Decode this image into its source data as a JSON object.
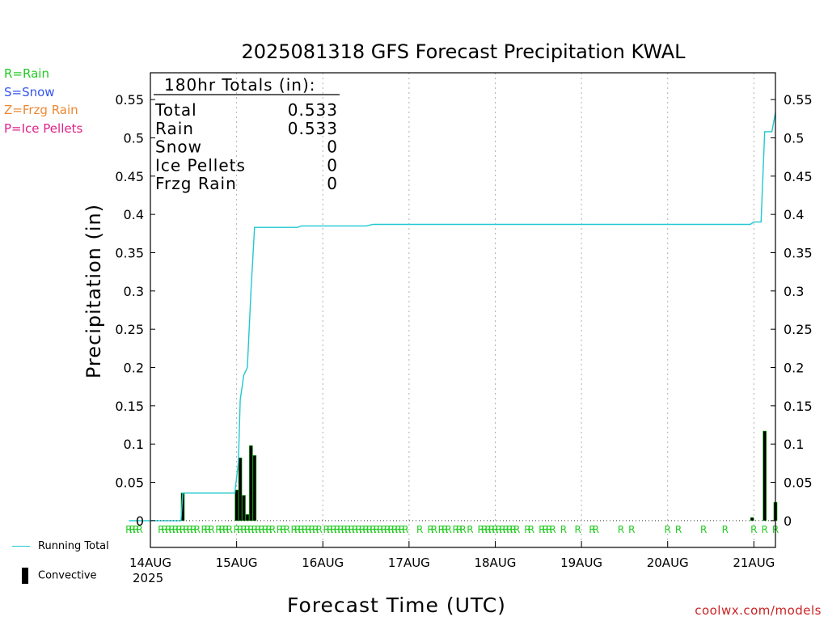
{
  "chart_data": {
    "type": "line",
    "title": "2025081318 GFS Forecast Precipitation KWAL",
    "xlabel": "Forecast Time (UTC)",
    "ylabel": "Precipitation (in)",
    "ylim": [
      -0.035,
      0.585
    ],
    "xlim": [
      "2025-08-14T00:00",
      "2025-08-21T06:00"
    ],
    "y_ticks": [
      "0",
      "0.05",
      "0.1",
      "0.15",
      "0.2",
      "0.25",
      "0.3",
      "0.35",
      "0.4",
      "0.45",
      "0.5",
      "0.55"
    ],
    "x_ticks": [
      {
        "label": "14AUG",
        "t": "2025-08-14T00:00"
      },
      {
        "label": "15AUG",
        "t": "2025-08-15T00:00"
      },
      {
        "label": "16AUG",
        "t": "2025-08-16T00:00"
      },
      {
        "label": "17AUG",
        "t": "2025-08-17T00:00"
      },
      {
        "label": "18AUG",
        "t": "2025-08-18T00:00"
      },
      {
        "label": "19AUG",
        "t": "2025-08-19T00:00"
      },
      {
        "label": "20AUG",
        "t": "2025-08-20T00:00"
      },
      {
        "label": "21AUG",
        "t": "2025-08-21T00:00"
      }
    ],
    "x_year_label": "2025",
    "grid": "vertical dotted",
    "totals_box": {
      "header": "180hr Totals (in):",
      "rows": [
        {
          "label": "Total",
          "value": "0.533"
        },
        {
          "label": "Rain",
          "value": "0.533"
        },
        {
          "label": "Snow",
          "value": "0"
        },
        {
          "label": "Ice Pellets",
          "value": "0"
        },
        {
          "label": "Frzg Rain",
          "value": "0"
        }
      ]
    },
    "precip_type_legend": [
      {
        "text": "R=Rain",
        "color": "#22cc22"
      },
      {
        "text": "S=Snow",
        "color": "#3355ee"
      },
      {
        "text": "Z=Frzg Rain",
        "color": "#ee8833"
      },
      {
        "text": "P=Ice Pellets",
        "color": "#dd2288"
      }
    ],
    "series": [
      {
        "name": "Running Total",
        "color": "#20c8d0",
        "points": [
          [
            "2025-08-13T18:00",
            0
          ],
          [
            "2025-08-14T08:30",
            0
          ],
          [
            "2025-08-14T09:00",
            0.036
          ],
          [
            "2025-08-14T23:00",
            0.036
          ],
          [
            "2025-08-14T23:30",
            0.036
          ],
          [
            "2025-08-15T00:30",
            0.076
          ],
          [
            "2025-08-15T01:00",
            0.158
          ],
          [
            "2025-08-15T02:00",
            0.19
          ],
          [
            "2025-08-15T03:00",
            0.2
          ],
          [
            "2025-08-15T04:00",
            0.3
          ],
          [
            "2025-08-15T05:00",
            0.383
          ],
          [
            "2025-08-15T17:00",
            0.383
          ],
          [
            "2025-08-15T18:00",
            0.385
          ],
          [
            "2025-08-16T12:00",
            0.385
          ],
          [
            "2025-08-16T14:00",
            0.387
          ],
          [
            "2025-08-20T23:00",
            0.387
          ],
          [
            "2025-08-21T00:00",
            0.39
          ],
          [
            "2025-08-21T02:00",
            0.39
          ],
          [
            "2025-08-21T03:00",
            0.508
          ],
          [
            "2025-08-21T05:00",
            0.508
          ],
          [
            "2025-08-21T06:00",
            0.533
          ]
        ]
      },
      {
        "name": "Convective",
        "color": "#000000",
        "bars": [
          [
            "2025-08-14T09:00",
            0.036
          ],
          [
            "2025-08-15T00:00",
            0.04
          ],
          [
            "2025-08-15T01:00",
            0.082
          ],
          [
            "2025-08-15T02:00",
            0.033
          ],
          [
            "2025-08-15T03:00",
            0.008
          ],
          [
            "2025-08-15T04:00",
            0.098
          ],
          [
            "2025-08-15T05:00",
            0.085
          ],
          [
            "2025-08-20T23:30",
            0.004
          ],
          [
            "2025-08-21T03:00",
            0.117
          ],
          [
            "2025-08-21T06:00",
            0.024
          ]
        ]
      }
    ],
    "rain_markers": [
      "2025-08-13T18:00",
      "2025-08-13T19:00",
      "2025-08-13T20:00",
      "2025-08-13T21:00",
      "2025-08-14T03:00",
      "2025-08-14T04:00",
      "2025-08-14T05:00",
      "2025-08-14T06:00",
      "2025-08-14T07:00",
      "2025-08-14T08:00",
      "2025-08-14T09:00",
      "2025-08-14T10:00",
      "2025-08-14T11:00",
      "2025-08-14T12:00",
      "2025-08-14T13:00",
      "2025-08-14T15:00",
      "2025-08-14T16:00",
      "2025-08-14T17:00",
      "2025-08-14T19:00",
      "2025-08-14T20:00",
      "2025-08-14T21:00",
      "2025-08-14T22:00",
      "2025-08-15T00:00",
      "2025-08-15T01:00",
      "2025-08-15T02:00",
      "2025-08-15T03:00",
      "2025-08-15T04:00",
      "2025-08-15T05:00",
      "2025-08-15T06:00",
      "2025-08-15T07:00",
      "2025-08-15T08:00",
      "2025-08-15T09:00",
      "2025-08-15T10:00",
      "2025-08-15T12:00",
      "2025-08-15T13:00",
      "2025-08-15T14:00",
      "2025-08-15T16:00",
      "2025-08-15T17:00",
      "2025-08-15T18:00",
      "2025-08-15T19:00",
      "2025-08-15T20:00",
      "2025-08-15T21:00",
      "2025-08-15T22:00",
      "2025-08-15T23:00",
      "2025-08-16T01:00",
      "2025-08-16T02:00",
      "2025-08-16T03:00",
      "2025-08-16T04:00",
      "2025-08-16T05:00",
      "2025-08-16T06:00",
      "2025-08-16T07:00",
      "2025-08-16T08:00",
      "2025-08-16T09:00",
      "2025-08-16T10:00",
      "2025-08-16T11:00",
      "2025-08-16T12:00",
      "2025-08-16T13:00",
      "2025-08-16T14:00",
      "2025-08-16T15:00",
      "2025-08-16T16:00",
      "2025-08-16T17:00",
      "2025-08-16T18:00",
      "2025-08-16T19:00",
      "2025-08-16T20:00",
      "2025-08-16T21:00",
      "2025-08-16T22:00",
      "2025-08-16T23:00",
      "2025-08-17T03:00",
      "2025-08-17T06:00",
      "2025-08-17T07:00",
      "2025-08-17T09:00",
      "2025-08-17T10:00",
      "2025-08-17T11:00",
      "2025-08-17T13:00",
      "2025-08-17T14:00",
      "2025-08-17T15:00",
      "2025-08-17T17:00",
      "2025-08-17T20:00",
      "2025-08-17T21:00",
      "2025-08-17T22:00",
      "2025-08-17T23:00",
      "2025-08-18T00:00",
      "2025-08-18T01:00",
      "2025-08-18T02:00",
      "2025-08-18T03:00",
      "2025-08-18T04:00",
      "2025-08-18T05:00",
      "2025-08-18T06:00",
      "2025-08-18T09:00",
      "2025-08-18T10:00",
      "2025-08-18T13:00",
      "2025-08-18T14:00",
      "2025-08-18T15:00",
      "2025-08-18T16:00",
      "2025-08-18T19:00",
      "2025-08-18T23:00",
      "2025-08-19T03:00",
      "2025-08-19T04:00",
      "2025-08-19T11:00",
      "2025-08-19T14:00",
      "2025-08-20T00:00",
      "2025-08-20T03:00",
      "2025-08-20T10:00",
      "2025-08-20T16:00",
      "2025-08-21T00:00",
      "2025-08-21T03:00",
      "2025-08-21T06:00"
    ],
    "legend": [
      {
        "label": "Running Total",
        "style": "line",
        "color": "#20c8d0"
      },
      {
        "label": "Convective",
        "style": "bar",
        "color": "#000000"
      }
    ],
    "source_label": "coolwx.com/models"
  }
}
